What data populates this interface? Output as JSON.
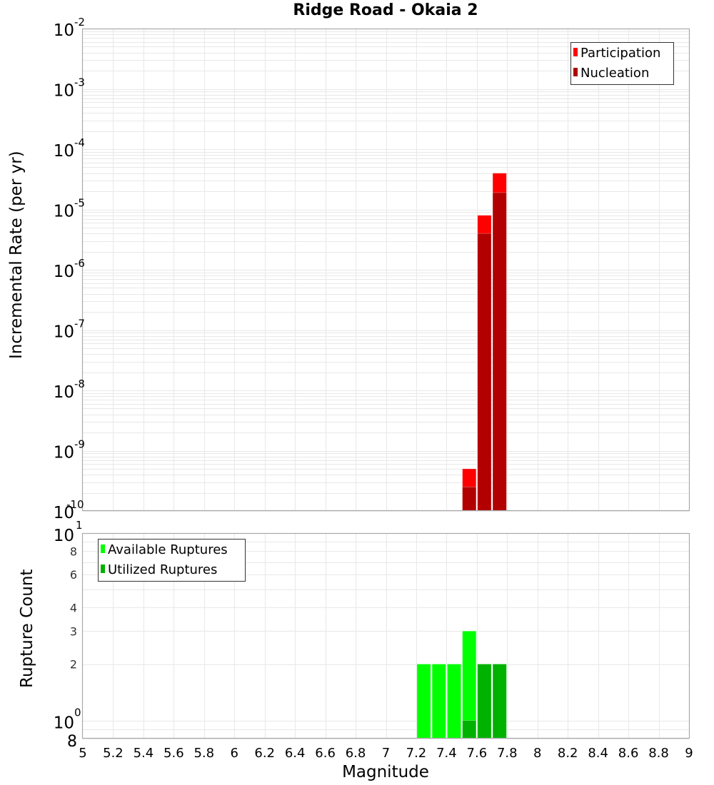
{
  "chart_data": [
    {
      "panel": "top",
      "type": "bar",
      "title": "Ridge Road - Okaia 2",
      "xlabel": "Magnitude",
      "ylabel": "Incremental Rate (per yr)",
      "yscale": "log",
      "xlim": [
        5,
        9
      ],
      "ylim": [
        1e-10,
        0.01
      ],
      "grid": true,
      "legend_position": "top-right",
      "y_tick_labels": [
        {
          "base": "10",
          "exp": "-2",
          "value": 0.01
        },
        {
          "base": "10",
          "exp": "-3",
          "value": 0.001
        },
        {
          "base": "10",
          "exp": "-4",
          "value": 0.0001
        },
        {
          "base": "10",
          "exp": "-5",
          "value": 1e-05
        },
        {
          "base": "10",
          "exp": "-6",
          "value": 1e-06
        },
        {
          "base": "10",
          "exp": "-7",
          "value": 1e-07
        },
        {
          "base": "10",
          "exp": "-8",
          "value": 1e-08
        },
        {
          "base": "10",
          "exp": "-9",
          "value": 1e-09
        },
        {
          "base": "10",
          "exp": "-10",
          "value": 1e-10
        }
      ],
      "bin_width": 0.1,
      "series": [
        {
          "name": "Participation",
          "color": "#ff0000",
          "x": [
            7.55,
            7.65,
            7.75
          ],
          "values": [
            5e-10,
            8e-06,
            4e-05
          ]
        },
        {
          "name": "Nucleation",
          "color": "#b20000",
          "x": [
            7.55,
            7.65,
            7.75
          ],
          "values": [
            2.5e-10,
            4e-06,
            1.9e-05
          ]
        }
      ]
    },
    {
      "panel": "bottom",
      "type": "bar",
      "xlabel": "Magnitude",
      "ylabel": "Rupture Count",
      "yscale": "log",
      "xlim": [
        5,
        9
      ],
      "ylim": [
        0.8,
        10
      ],
      "grid": true,
      "legend_position": "top-left",
      "y_tick_labels": [
        {
          "base": "10",
          "exp": "1",
          "value": 10,
          "major": true
        },
        {
          "label": "8",
          "value": 8
        },
        {
          "label": "6",
          "value": 6
        },
        {
          "label": "4",
          "value": 4
        },
        {
          "label": "3",
          "value": 3
        },
        {
          "label": "2",
          "value": 2
        },
        {
          "base": "10",
          "exp": "0",
          "value": 1,
          "major": true
        },
        {
          "label": "8",
          "value": 0.8,
          "large": true
        }
      ],
      "bin_width": 0.1,
      "series": [
        {
          "name": "Available Ruptures",
          "color": "#00ff00",
          "x": [
            7.25,
            7.35,
            7.45,
            7.55,
            7.65,
            7.75
          ],
          "values": [
            2,
            2,
            2,
            3,
            2,
            2
          ]
        },
        {
          "name": "Utilized Ruptures",
          "color": "#00b200",
          "x": [
            7.55,
            7.65,
            7.75
          ],
          "values": [
            1,
            2,
            2
          ]
        }
      ],
      "x_tick_labels": [
        "5",
        "5.2",
        "5.4",
        "5.6",
        "5.8",
        "6",
        "6.2",
        "6.4",
        "6.6",
        "6.8",
        "7",
        "7.2",
        "7.4",
        "7.6",
        "7.8",
        "8",
        "8.2",
        "8.4",
        "8.6",
        "8.8",
        "9"
      ]
    }
  ],
  "labels": {
    "title": "Ridge Road - Okaia 2",
    "top_ylabel": "Incremental Rate (per yr)",
    "bottom_ylabel": "Rupture Count",
    "xlabel": "Magnitude"
  },
  "colors": {
    "participation": "#ff0000",
    "nucleation": "#b20000",
    "available": "#00ff00",
    "utilized": "#00b200",
    "grid": "#e8e8e8",
    "axis": "#aaaaaa"
  }
}
